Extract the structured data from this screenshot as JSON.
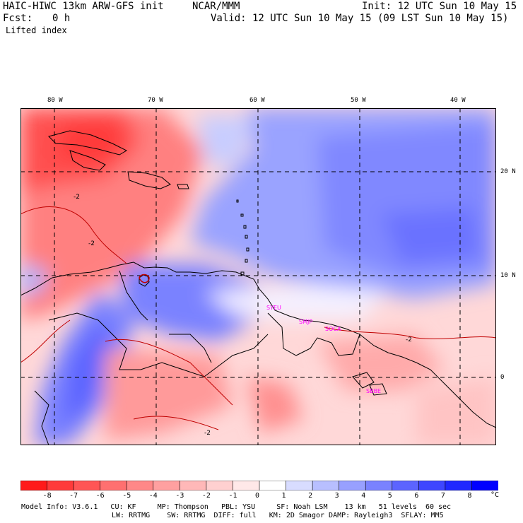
{
  "header": {
    "model": "HAIC-HIWC 13km ARW-GFS init",
    "org": "NCAR/MMM",
    "init": "Init: 12 UTC Sun 10 May 15",
    "fcst_label": "Fcst:",
    "fcst_value": "0 h",
    "valid": "Valid: 12 UTC Sun 10 May 15 (09 LST Sun 10 May 15)",
    "field": "Lifted index"
  },
  "map": {
    "lon_labels": [
      "80 W",
      "70 W",
      "60 W",
      "50 W",
      "40 W"
    ],
    "lat_labels": [
      "20 N",
      "10 N",
      "0"
    ],
    "contour_labels": [
      "-2",
      "-2",
      "-2",
      "-2"
    ],
    "stations": [
      "SYEU",
      "SMJP",
      "SOCA",
      "SBBE"
    ]
  },
  "colorbar": {
    "tick_labels": [
      "-8",
      "-7",
      "-6",
      "-5",
      "-4",
      "-3",
      "-2",
      "-1",
      "0",
      "1",
      "2",
      "3",
      "4",
      "5",
      "6",
      "7",
      "8"
    ],
    "unit": "°C",
    "colors": [
      "#ff1a1a",
      "#ff3a3a",
      "#ff5555",
      "#ff7070",
      "#ff8888",
      "#ffa0a0",
      "#ffb8b8",
      "#ffd0d0",
      "#ffe8e8",
      "#ffffff",
      "#d8dcff",
      "#b8bfff",
      "#98a0ff",
      "#7a82ff",
      "#5c64ff",
      "#3e46ff",
      "#2028ff",
      "#0000ff"
    ]
  },
  "model_info": {
    "line1": "Model Info: V3.6.1   CU: KF     MP: Thompson   PBL: YSU     SF: Noah LSM    13 km   51 levels  60 sec",
    "line2": "LW: RRTMG    SW: RRTMG  DIFF: full   KM: 2D Smagor DAMP: Rayleigh3  SFLAY: MM5"
  }
}
